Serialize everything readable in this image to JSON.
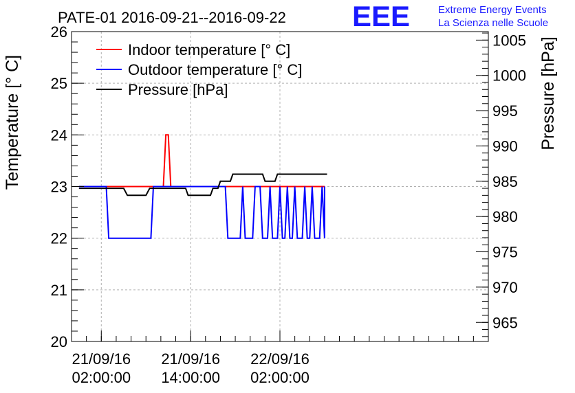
{
  "header": {
    "logo": "EEE",
    "org_line1": "Extreme Energy Events",
    "org_line2": "La Scienza nelle Scuole"
  },
  "colors": {
    "indoor": "#ff0000",
    "outdoor": "#0000ff",
    "pressure": "#000000",
    "logo": "#1a1aff",
    "grid": "#b0b0b0"
  },
  "chart_data": {
    "type": "line",
    "title": "PATE-01 2016-09-21--2016-09-22",
    "ylabel": "Temperature [° C]",
    "y2label": "Pressure [hPa]",
    "xlabel": "",
    "ylim": [
      20,
      26
    ],
    "y2lim": [
      962.3,
      1006.2
    ],
    "yticks": [
      "20",
      "21",
      "22",
      "23",
      "24",
      "25",
      "26"
    ],
    "y2ticks": [
      "965",
      "970",
      "975",
      "980",
      "985",
      "990",
      "995",
      "1000",
      "1005"
    ],
    "x_is_time": true,
    "xlim": [
      "2016-09-20 22:00",
      "2016-09-23 06:00"
    ],
    "xticks": [
      {
        "t": "2016-09-21 02:00",
        "date": "21/09/16",
        "time": "02:00:00"
      },
      {
        "t": "2016-09-21 14:00",
        "date": "21/09/16",
        "time": "14:00:00"
      },
      {
        "t": "2016-09-22 02:00",
        "date": "22/09/16",
        "time": "02:00:00"
      }
    ],
    "grid": true,
    "legend": {
      "position": "top-left",
      "entries": [
        "Indoor temperature [° C]",
        "Outdoor temperature [° C]",
        "Pressure [hPa]"
      ]
    },
    "series": [
      {
        "name": "Indoor temperature [° C]",
        "axis": "left",
        "points": [
          [
            "2016-09-20 23:00",
            23
          ],
          [
            "2016-09-21 10:20",
            23
          ],
          [
            "2016-09-21 10:40",
            24
          ],
          [
            "2016-09-21 11:00",
            24
          ],
          [
            "2016-09-21 11:20",
            23
          ],
          [
            "2016-09-22 08:00",
            23
          ]
        ]
      },
      {
        "name": "Outdoor temperature [° C]",
        "axis": "left",
        "points": [
          [
            "2016-09-20 23:00",
            23
          ],
          [
            "2016-09-21 02:40",
            23
          ],
          [
            "2016-09-21 03:00",
            22
          ],
          [
            "2016-09-21 08:40",
            22
          ],
          [
            "2016-09-21 09:00",
            23
          ],
          [
            "2016-09-21 18:40",
            23
          ],
          [
            "2016-09-21 19:00",
            22
          ],
          [
            "2016-09-21 20:40",
            22
          ],
          [
            "2016-09-21 21:00",
            23
          ],
          [
            "2016-09-21 21:20",
            22
          ],
          [
            "2016-09-21 22:20",
            22
          ],
          [
            "2016-09-21 22:40",
            23
          ],
          [
            "2016-09-21 23:20",
            23
          ],
          [
            "2016-09-21 23:40",
            22
          ],
          [
            "2016-09-22 00:20",
            22
          ],
          [
            "2016-09-22 00:40",
            23
          ],
          [
            "2016-09-22 01:00",
            22
          ],
          [
            "2016-09-22 01:40",
            22
          ],
          [
            "2016-09-22 02:00",
            23
          ],
          [
            "2016-09-22 02:20",
            22
          ],
          [
            "2016-09-22 02:40",
            22
          ],
          [
            "2016-09-22 03:00",
            23
          ],
          [
            "2016-09-22 03:20",
            22
          ],
          [
            "2016-09-22 03:40",
            22
          ],
          [
            "2016-09-22 04:00",
            23
          ],
          [
            "2016-09-22 04:20",
            22
          ],
          [
            "2016-09-22 05:00",
            22
          ],
          [
            "2016-09-22 05:20",
            23
          ],
          [
            "2016-09-22 05:40",
            22
          ],
          [
            "2016-09-22 06:00",
            22
          ],
          [
            "2016-09-22 06:20",
            23
          ],
          [
            "2016-09-22 06:40",
            22
          ],
          [
            "2016-09-22 07:20",
            22
          ],
          [
            "2016-09-22 07:40",
            23
          ],
          [
            "2016-09-22 08:00",
            22
          ],
          [
            "2016-09-22 08:00",
            23
          ]
        ]
      },
      {
        "name": "Pressure [hPa]",
        "axis": "right",
        "points": [
          [
            "2016-09-20 23:00",
            984
          ],
          [
            "2016-09-21 05:00",
            984
          ],
          [
            "2016-09-21 05:30",
            983
          ],
          [
            "2016-09-21 08:00",
            983
          ],
          [
            "2016-09-21 08:30",
            984
          ],
          [
            "2016-09-21 13:20",
            984
          ],
          [
            "2016-09-21 13:40",
            983
          ],
          [
            "2016-09-21 16:40",
            983
          ],
          [
            "2016-09-21 17:00",
            984
          ],
          [
            "2016-09-21 17:40",
            984
          ],
          [
            "2016-09-21 18:00",
            985
          ],
          [
            "2016-09-21 19:20",
            985
          ],
          [
            "2016-09-21 19:40",
            986
          ],
          [
            "2016-09-21 23:40",
            986
          ],
          [
            "2016-09-22 00:00",
            985
          ],
          [
            "2016-09-22 01:20",
            985
          ],
          [
            "2016-09-22 01:40",
            986
          ],
          [
            "2016-09-22 08:20",
            986
          ]
        ]
      }
    ]
  }
}
